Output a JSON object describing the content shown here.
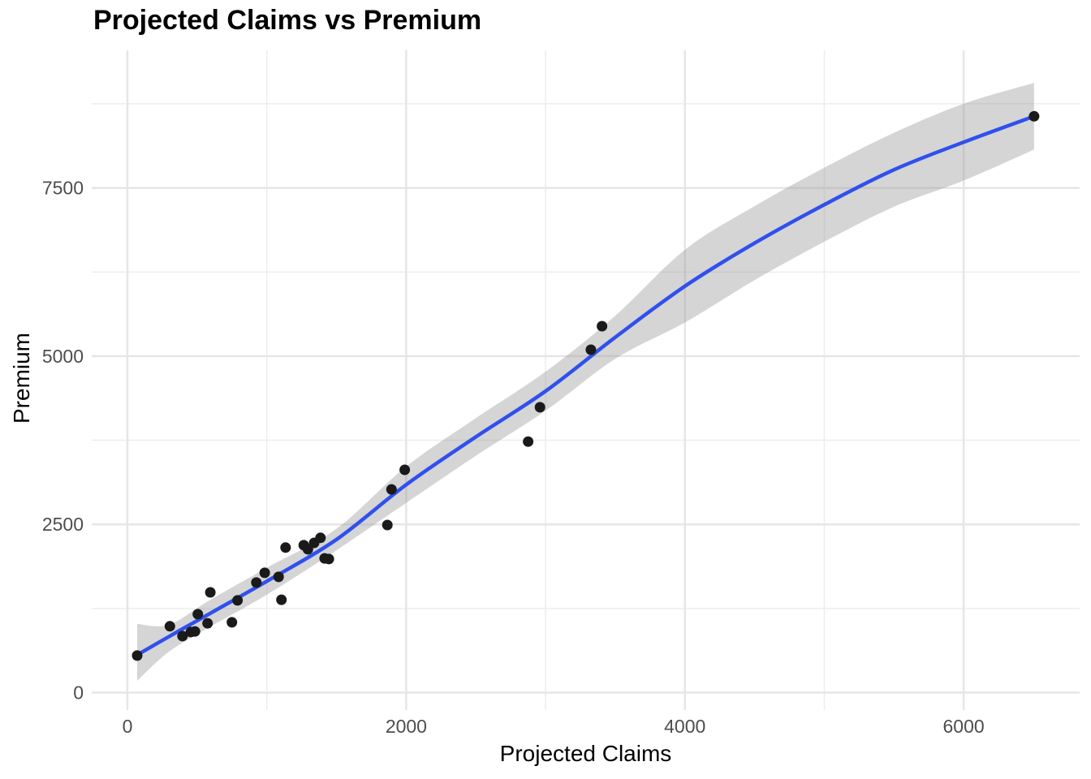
{
  "title": "Projected Claims vs Premium",
  "chart_data": {
    "type": "scatter",
    "title": "Projected Claims vs Premium",
    "xlabel": "Projected Claims",
    "ylabel": "Premium",
    "x_ticks": [
      0,
      2000,
      4000,
      6000
    ],
    "y_ticks": [
      0,
      2500,
      5000,
      7500
    ],
    "x_minor_ticks": [
      1000,
      3000,
      5000
    ],
    "y_minor_ticks": [
      1250,
      3750,
      6250,
      8750
    ],
    "xlim": [
      -256,
      6832
    ],
    "ylim": [
      -259,
      9545
    ],
    "grid": true,
    "legend": "none",
    "points": [
      [
        70,
        550
      ],
      [
        305,
        985
      ],
      [
        395,
        840
      ],
      [
        455,
        900
      ],
      [
        485,
        910
      ],
      [
        505,
        1165
      ],
      [
        575,
        1030
      ],
      [
        595,
        1490
      ],
      [
        750,
        1045
      ],
      [
        790,
        1370
      ],
      [
        925,
        1635
      ],
      [
        985,
        1780
      ],
      [
        1085,
        1720
      ],
      [
        1105,
        1380
      ],
      [
        1135,
        2155
      ],
      [
        1265,
        2190
      ],
      [
        1295,
        2130
      ],
      [
        1340,
        2225
      ],
      [
        1385,
        2300
      ],
      [
        1415,
        1995
      ],
      [
        1445,
        1985
      ],
      [
        1865,
        2490
      ],
      [
        1895,
        3020
      ],
      [
        1990,
        3310
      ],
      [
        2875,
        3730
      ],
      [
        2960,
        4240
      ],
      [
        3325,
        5095
      ],
      [
        3405,
        5445
      ],
      [
        6505,
        8565
      ]
    ],
    "smooth_line": {
      "x": [
        70,
        300,
        600,
        1000,
        1500,
        2000,
        2500,
        3000,
        3500,
        4000,
        4500,
        5000,
        5500,
        6000,
        6505
      ],
      "y": [
        560,
        835,
        1185,
        1655,
        2275,
        3090,
        3800,
        4480,
        5280,
        6040,
        6680,
        7250,
        7770,
        8180,
        8565
      ]
    },
    "ribbon": {
      "x": [
        70,
        300,
        600,
        1000,
        1500,
        2000,
        2500,
        3000,
        3500,
        4000,
        4500,
        5000,
        5500,
        6000,
        6505
      ],
      "upper": [
        1020,
        1010,
        1385,
        1855,
        2435,
        3360,
        4080,
        4770,
        5600,
        6580,
        7230,
        7800,
        8320,
        8750,
        9060
      ],
      "lower": [
        175,
        610,
        985,
        1455,
        2115,
        2820,
        3520,
        4190,
        4960,
        5500,
        6130,
        6700,
        7220,
        7610,
        8070
      ]
    },
    "colors": {
      "point": "#1A1A1A",
      "line": "#3050ED",
      "ribbon": "rgba(150,150,150,0.40)",
      "grid_major": "#E6E6E6",
      "grid_minor": "#EDEDED",
      "axis_text": "#4D4D4D",
      "axis_title": "#000000",
      "title": "#000000",
      "background": "#FFFFFF"
    }
  }
}
